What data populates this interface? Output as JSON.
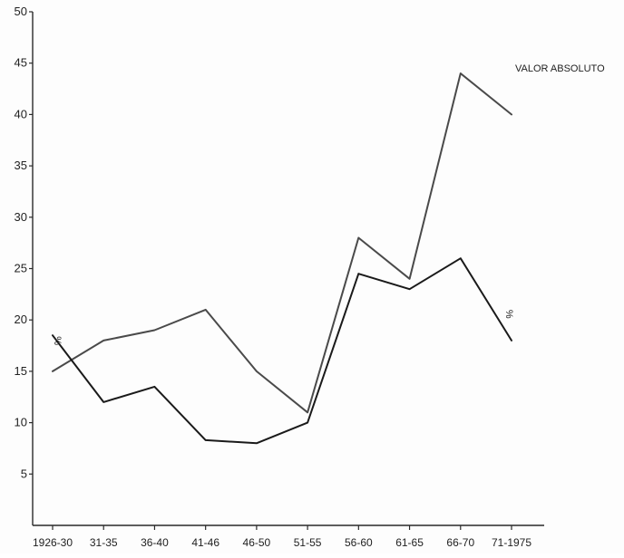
{
  "chart_data": {
    "type": "line",
    "categories": [
      "1926-30",
      "31-35",
      "36-40",
      "41-46",
      "46-50",
      "51-55",
      "56-60",
      "61-65",
      "66-70",
      "71-1975"
    ],
    "ylim": [
      0,
      50
    ],
    "yticks": [
      5,
      10,
      15,
      20,
      25,
      30,
      35,
      40,
      45,
      50
    ],
    "grid": false,
    "series": [
      {
        "name": "VALOR ABSOLUTO",
        "values": [
          15,
          18,
          19,
          21,
          15,
          11,
          28,
          24,
          44,
          40
        ],
        "color": "#4a4a4a"
      },
      {
        "name": "%",
        "values": [
          18.5,
          12,
          13.5,
          8.3,
          8,
          10,
          24.5,
          23,
          26,
          18
        ],
        "color": "#1a1a1a"
      }
    ],
    "annotations": [
      {
        "text": "%",
        "series": 1,
        "near_category": "1926-30"
      }
    ]
  }
}
